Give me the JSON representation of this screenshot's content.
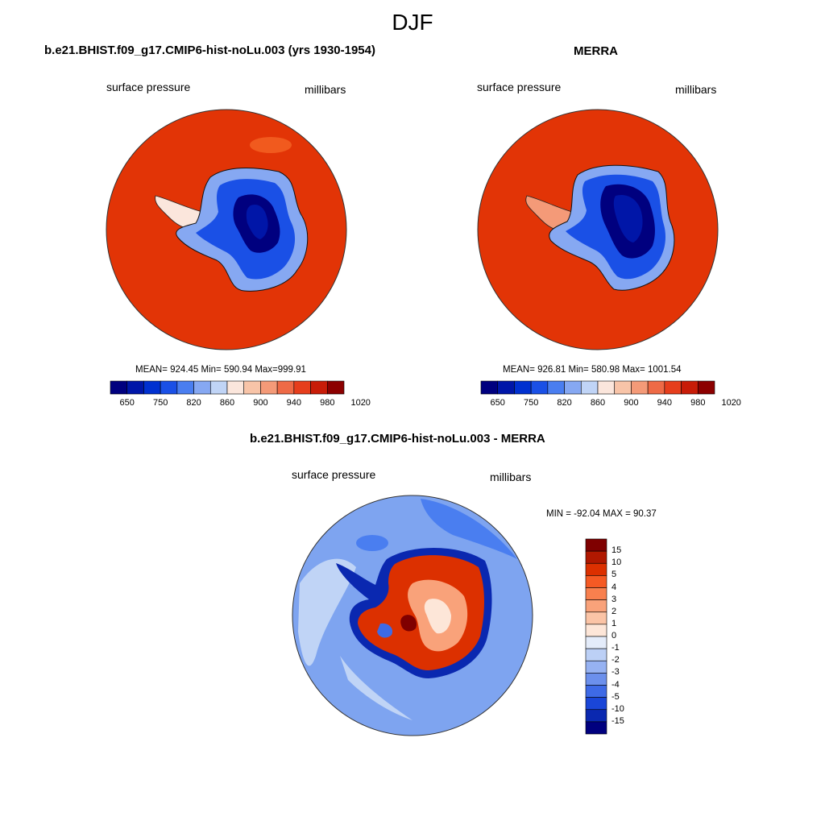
{
  "season": "DJF",
  "panels": [
    {
      "title": "b.e21.BHIST.f09_g17.CMIP6-hist-noLu.003 (yrs 1930-1954)",
      "variable": "surface pressure",
      "units": "millibars",
      "stats": "MEAN= 924.45  Min= 590.94  Max=999.91",
      "colorbar_labels": [
        "650",
        "750",
        "820",
        "860",
        "900",
        "940",
        "980",
        "1020"
      ]
    },
    {
      "title": "MERRA",
      "variable": "surface pressure",
      "units": "millibars",
      "stats": "MEAN= 926.81  Min= 580.98  Max= 1001.54",
      "colorbar_labels": [
        "650",
        "750",
        "820",
        "860",
        "900",
        "940",
        "980",
        "1020"
      ]
    }
  ],
  "difference": {
    "title": "b.e21.BHIST.f09_g17.CMIP6-hist-noLu.003 - MERRA",
    "variable": "surface pressure",
    "units": "millibars",
    "stats": "MIN = -92.04 MAX =  90.37",
    "colorbar_labels": [
      "15",
      "10",
      "5",
      "4",
      "3",
      "2",
      "1",
      "0",
      "-1",
      "-2",
      "-3",
      "-4",
      "-5",
      "-10",
      "-15"
    ]
  },
  "colors": {
    "horizontal_scale": [
      "#00007f",
      "#0016a8",
      "#0030d0",
      "#1a50e6",
      "#4a7ef0",
      "#86a8f2",
      "#c0d4f6",
      "#fbe6dc",
      "#f8c4a8",
      "#f49a78",
      "#ee6a46",
      "#e63e1c",
      "#c81c08",
      "#8c0000"
    ],
    "vertical_scale": [
      "#7f0000",
      "#b01800",
      "#dc3000",
      "#f55a24",
      "#f8804e",
      "#f9a27a",
      "#fbc4a6",
      "#fde6d8",
      "#e4ecfa",
      "#bcd0f6",
      "#96b2f2",
      "#6c90ec",
      "#3e6ae6",
      "#1a46d8",
      "#0a28b0",
      "#00007f"
    ],
    "ocean_red": "#e23406",
    "ocean_blue_diff": "#7ea4f0"
  }
}
